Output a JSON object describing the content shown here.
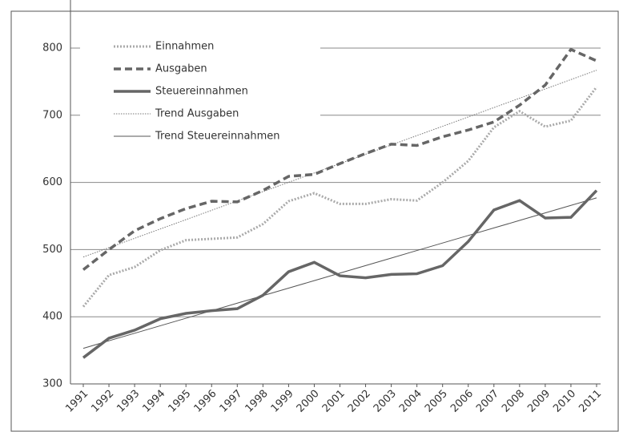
{
  "chart_data": {
    "type": "line",
    "categories": [
      "1991",
      "1992",
      "1993",
      "1994",
      "1995",
      "1996",
      "1997",
      "1998",
      "1999",
      "2000",
      "2001",
      "2002",
      "2003",
      "2004",
      "2005",
      "2006",
      "2007",
      "2008",
      "2009",
      "2010",
      "2011"
    ],
    "series": [
      {
        "name": "Einnahmen",
        "color": "#aaaaaa",
        "style": "dotted",
        "values": [
          415,
          462,
          474,
          499,
          514,
          516,
          518,
          538,
          572,
          584,
          568,
          568,
          575,
          573,
          600,
          632,
          682,
          706,
          683,
          692,
          742
        ]
      },
      {
        "name": "Ausgaben",
        "color": "#666666",
        "style": "dashed",
        "values": [
          470,
          500,
          528,
          546,
          561,
          572,
          571,
          588,
          609,
          612,
          628,
          643,
          657,
          655,
          668,
          678,
          690,
          715,
          745,
          798,
          781
        ]
      },
      {
        "name": "Steuereinnahmen",
        "color": "#666666",
        "style": "solid",
        "values": [
          339,
          368,
          380,
          397,
          405,
          409,
          412,
          432,
          467,
          481,
          461,
          458,
          463,
          464,
          476,
          512,
          559,
          573,
          547,
          548,
          588
        ]
      },
      {
        "name": "Trend Ausgaben",
        "color": "#777777",
        "style": "thin-dotted",
        "values": [
          489,
          502.9,
          516.8,
          530.7,
          544.6,
          558.5,
          572.4,
          586.3,
          600.2,
          614.1,
          628,
          641.9,
          655.8,
          669.7,
          683.6,
          697.5,
          711.4,
          725.3,
          739.2,
          753.1,
          767
        ]
      },
      {
        "name": "Trend Steuereinnahmen",
        "color": "#555555",
        "style": "thin-solid",
        "values": [
          353,
          364.2,
          375.4,
          386.6,
          397.8,
          409,
          420.2,
          431.4,
          442.6,
          453.8,
          465,
          476.2,
          487.4,
          498.6,
          509.8,
          521,
          532.2,
          543.4,
          554.6,
          565.8,
          577
        ]
      }
    ],
    "ylim": [
      300,
      850
    ],
    "yticks": [
      300,
      400,
      500,
      600,
      700,
      800
    ],
    "grid": true,
    "legend": "top-left"
  }
}
